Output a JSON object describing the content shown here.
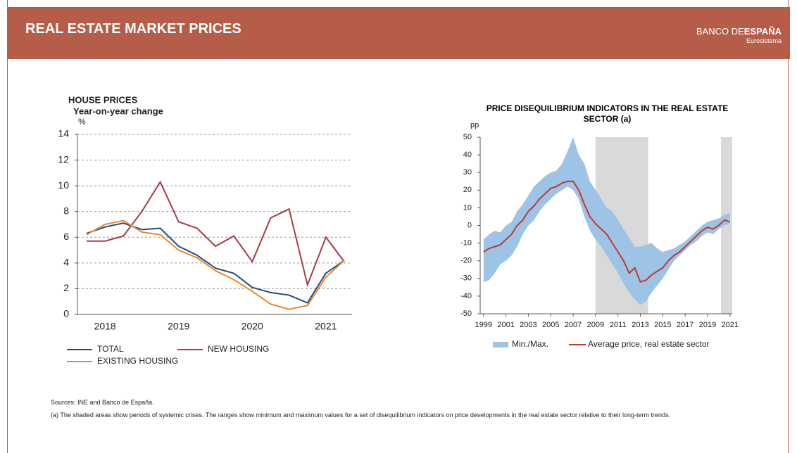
{
  "header": {
    "title": "REAL ESTATE MARKET PRICES",
    "logo_light": "BANCO DE",
    "logo_bold": "ESPAÑA",
    "logo_sub": "Eurosistema"
  },
  "notes": [
    "Sources: INE and Banco de España.",
    "(a) The shaded areas show periods of systemic crises. The ranges show minimum and maximum values for a set of disequilibrium indicators on price developments in the real estate sector relative to their long-term trends."
  ],
  "chart_data": [
    {
      "type": "line",
      "title": "HOUSE PRICES",
      "subtitle": "Year-on-year change",
      "y_label": "%",
      "categories": [
        null,
        "2018",
        null,
        null,
        null,
        "2019",
        null,
        null,
        null,
        "2020",
        null,
        null,
        null,
        "2021",
        null
      ],
      "series": [
        {
          "name": "TOTAL",
          "color": "#1f4e79",
          "values": [
            6.3,
            6.8,
            7.1,
            6.6,
            6.7,
            5.3,
            4.6,
            3.6,
            3.2,
            2.1,
            1.7,
            1.5,
            0.9,
            3.2,
            4.2
          ]
        },
        {
          "name": "NEW HOUSING",
          "color": "#a93a47",
          "values": [
            5.7,
            5.7,
            6.1,
            8.0,
            10.3,
            7.2,
            6.7,
            5.3,
            6.1,
            4.1,
            7.5,
            8.2,
            2.3,
            6.0,
            4.1
          ]
        },
        {
          "name": "EXISTING HOUSING",
          "color": "#f0862b",
          "values": [
            6.2,
            7.0,
            7.3,
            6.4,
            6.2,
            5.0,
            4.4,
            3.4,
            2.7,
            1.8,
            0.8,
            0.4,
            0.7,
            2.9,
            4.2
          ]
        }
      ],
      "ylim": [
        0,
        14
      ],
      "yticks": [
        0,
        2,
        4,
        6,
        8,
        10,
        12,
        14
      ],
      "grid": true
    },
    {
      "type": "line",
      "title": "PRICE DISEQUILIBRIUM INDICATORS IN THE REAL ESTATE SECTOR (a)",
      "y_label": "pp",
      "x": [
        1999,
        1999.5,
        2000,
        2000.5,
        2001,
        2001.5,
        2002,
        2002.5,
        2003,
        2003.5,
        2004,
        2004.5,
        2005,
        2005.5,
        2006,
        2006.5,
        2007,
        2007.5,
        2008,
        2008.5,
        2009,
        2009.5,
        2010,
        2010.5,
        2011,
        2011.5,
        2012,
        2012.5,
        2013,
        2013.5,
        2014,
        2014.5,
        2015,
        2015.5,
        2016,
        2016.5,
        2017,
        2017.5,
        2018,
        2018.5,
        2019,
        2019.5,
        2020,
        2020.5,
        2021
      ],
      "shaded_spans": [
        [
          2009,
          2013.7
        ],
        [
          2020.2,
          2021.2
        ]
      ],
      "shade_color": "#d9d9d9",
      "series": [
        {
          "name": "Min./Max.",
          "color": "#9dc3e6",
          "low": [
            -32,
            -31,
            -27,
            -22,
            -20,
            -17,
            -12,
            -5,
            0,
            3,
            8,
            12,
            15,
            18,
            20,
            22,
            20,
            15,
            5,
            -3,
            -8,
            -12,
            -17,
            -22,
            -27,
            -33,
            -38,
            -42,
            -45,
            -43,
            -38,
            -34,
            -30,
            -25,
            -20,
            -17,
            -14,
            -11,
            -9,
            -6,
            -4,
            -5,
            -2,
            0,
            1
          ],
          "high": [
            -8,
            -5,
            -3,
            -4,
            0,
            2,
            8,
            12,
            17,
            22,
            25,
            28,
            30,
            31,
            35,
            42,
            50,
            40,
            35,
            25,
            20,
            15,
            10,
            8,
            3,
            -2,
            -7,
            -12,
            -12,
            -11,
            -10,
            -13,
            -15,
            -14,
            -13,
            -11,
            -9,
            -6,
            -3,
            0,
            2,
            3,
            4,
            6,
            7
          ]
        },
        {
          "name": "Average price, real estate sector",
          "color": "#c0392b",
          "values": [
            -15,
            -13,
            -12,
            -11,
            -8,
            -5,
            0,
            3,
            8,
            11,
            15,
            18,
            21,
            22,
            24,
            25,
            25,
            20,
            12,
            5,
            1,
            -2,
            -5,
            -10,
            -15,
            -20,
            -27,
            -24,
            -32,
            -31,
            -28,
            -26,
            -24,
            -20,
            -17,
            -15,
            -12,
            -9,
            -6,
            -3,
            -1,
            -2,
            0,
            3,
            2
          ]
        }
      ],
      "xlim": [
        1998.7,
        2021.2
      ],
      "xticks": [
        1999,
        2001,
        2003,
        2005,
        2007,
        2009,
        2011,
        2013,
        2015,
        2017,
        2019,
        2021
      ],
      "ylim": [
        -50,
        50
      ],
      "yticks": [
        -50,
        -40,
        -30,
        -20,
        -10,
        0,
        10,
        20,
        30,
        40,
        50
      ],
      "grid": false
    }
  ]
}
